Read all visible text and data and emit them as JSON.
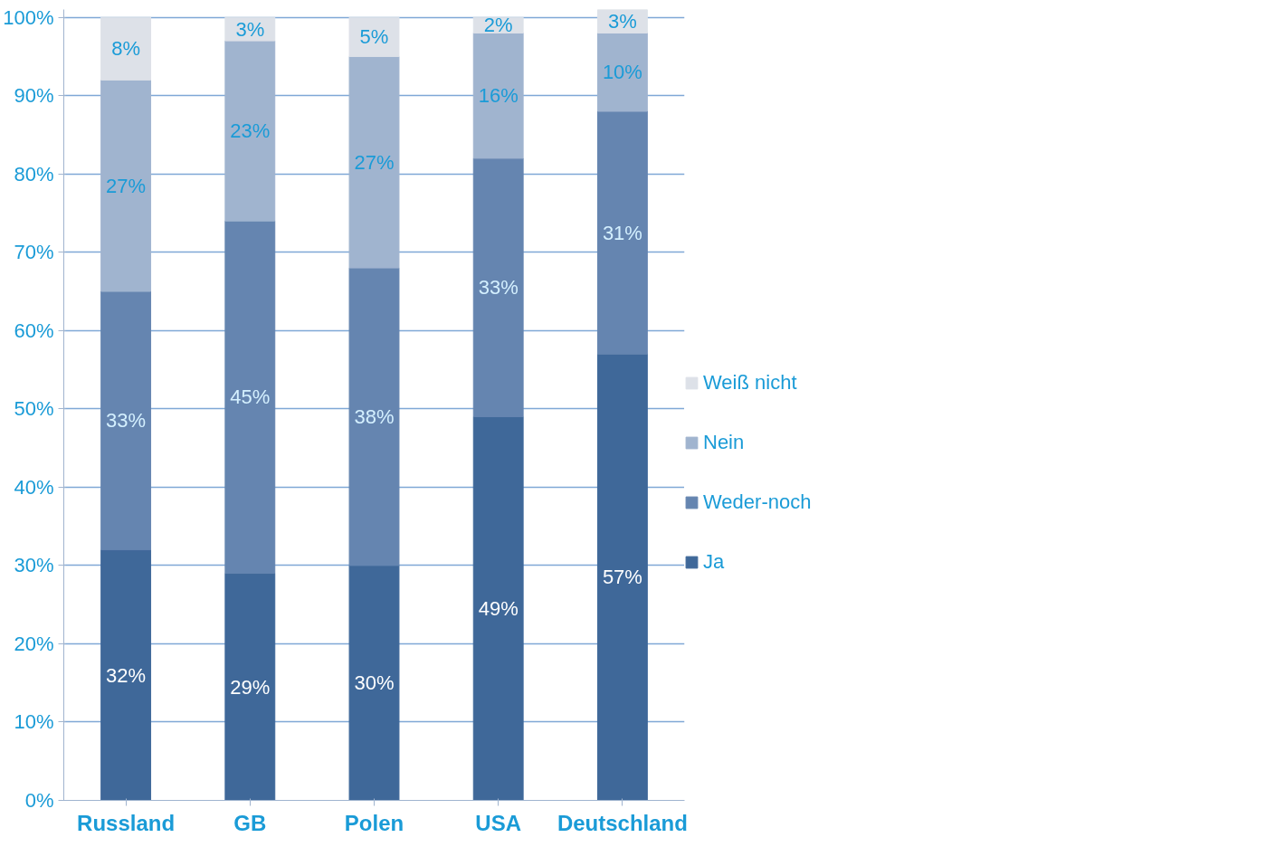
{
  "chart_data": {
    "type": "bar",
    "stacked": true,
    "categories": [
      "Russland",
      "GB",
      "Polen",
      "USA",
      "Deutschland"
    ],
    "series": [
      {
        "name": "Ja",
        "color": "#3f6899",
        "values": [
          32,
          29,
          30,
          49,
          57
        ],
        "value_labels": [
          "32%",
          "29%",
          "30%",
          "49%",
          "57%"
        ]
      },
      {
        "name": "Weder-noch",
        "color": "#6585b0",
        "values": [
          33,
          45,
          38,
          33,
          31
        ],
        "value_labels": [
          "33%",
          "45%",
          "38%",
          "33%",
          "31%"
        ]
      },
      {
        "name": "Nein",
        "color": "#a0b4cf",
        "values": [
          27,
          23,
          27,
          16,
          10
        ],
        "value_labels": [
          "27%",
          "23%",
          "27%",
          "16%",
          "10%"
        ]
      },
      {
        "name": "Weiß nicht",
        "color": "#dde1e8",
        "values": [
          8,
          3,
          5,
          2,
          3
        ],
        "value_labels": [
          "8%",
          "3%",
          "5%",
          "2%",
          "3%"
        ]
      }
    ],
    "ylim": [
      0,
      101
    ],
    "yticks": [
      {
        "value": 0,
        "label": "0%"
      },
      {
        "value": 10,
        "label": "10%"
      },
      {
        "value": 20,
        "label": "20%"
      },
      {
        "value": 30,
        "label": "30%"
      },
      {
        "value": 40,
        "label": "40%"
      },
      {
        "value": 50,
        "label": "50%"
      },
      {
        "value": 60,
        "label": "60%"
      },
      {
        "value": 70,
        "label": "70%"
      },
      {
        "value": 80,
        "label": "80%"
      },
      {
        "value": 90,
        "label": "90%"
      },
      {
        "value": 100,
        "label": "100%"
      }
    ],
    "grid": "y",
    "legend": "right"
  }
}
